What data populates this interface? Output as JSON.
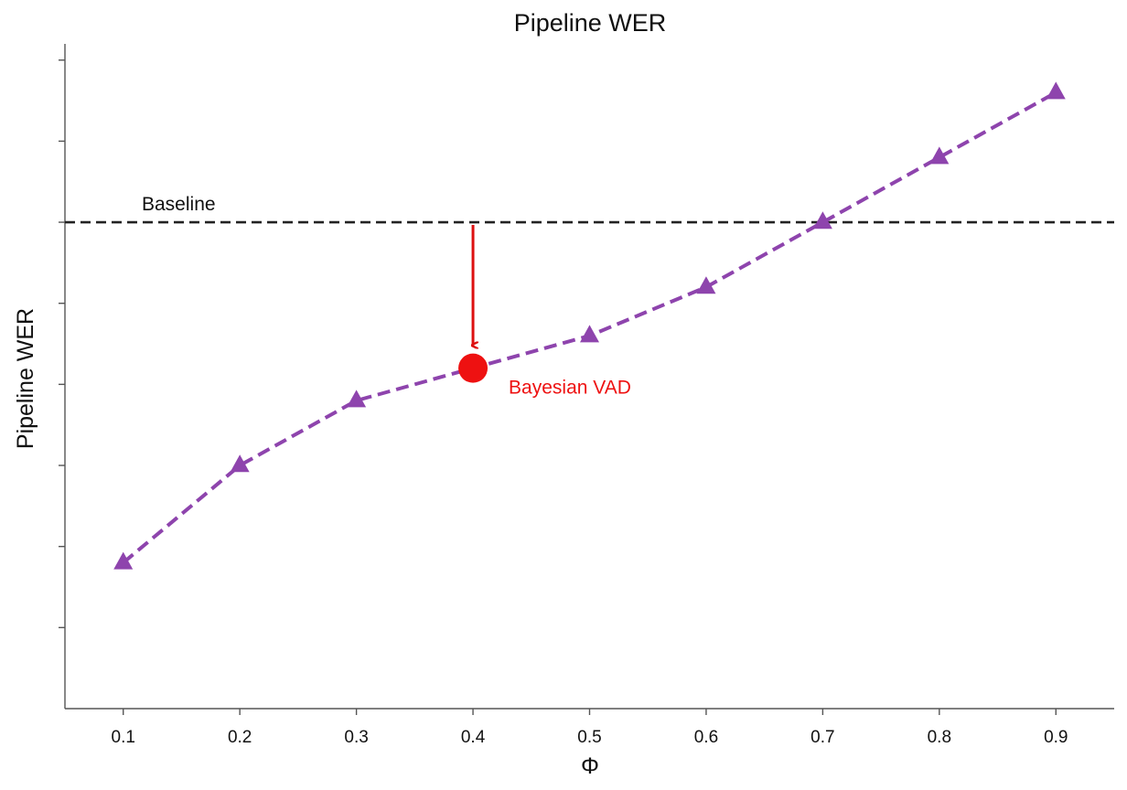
{
  "chart_data": {
    "type": "line",
    "title": "Pipeline WER",
    "xlabel": "Φ",
    "ylabel": "Pipeline WER",
    "x": [
      0.1,
      0.2,
      0.3,
      0.4,
      0.5,
      0.6,
      0.7,
      0.8,
      0.9
    ],
    "x_tick_labels": [
      "0.1",
      "0.2",
      "0.3",
      "0.4",
      "0.5",
      "0.6",
      "0.7",
      "0.8",
      "0.9"
    ],
    "xlim": [
      0.05,
      0.95
    ],
    "ylim": [
      0,
      8.2
    ],
    "y_tick_count": 8,
    "y_tick_labels_shown": false,
    "grid": false,
    "series": [
      {
        "name": "Pipeline WER",
        "values": [
          1.8,
          3.0,
          3.8,
          4.2,
          4.6,
          5.2,
          6.0,
          6.8,
          7.6
        ],
        "color": "#8e44ad",
        "marker": "triangle",
        "line_style": "dashed"
      }
    ],
    "baseline": {
      "label": "Baseline",
      "value": 6.0,
      "color": "#222222",
      "line_style": "dashed"
    },
    "highlight": {
      "label": "Bayesian VAD",
      "x": 0.4,
      "y": 4.2,
      "color": "#ee1111"
    },
    "annotation_arrow": {
      "from_y": 6.0,
      "to_y": 4.2,
      "x": 0.4,
      "color": "#dd1111"
    }
  }
}
